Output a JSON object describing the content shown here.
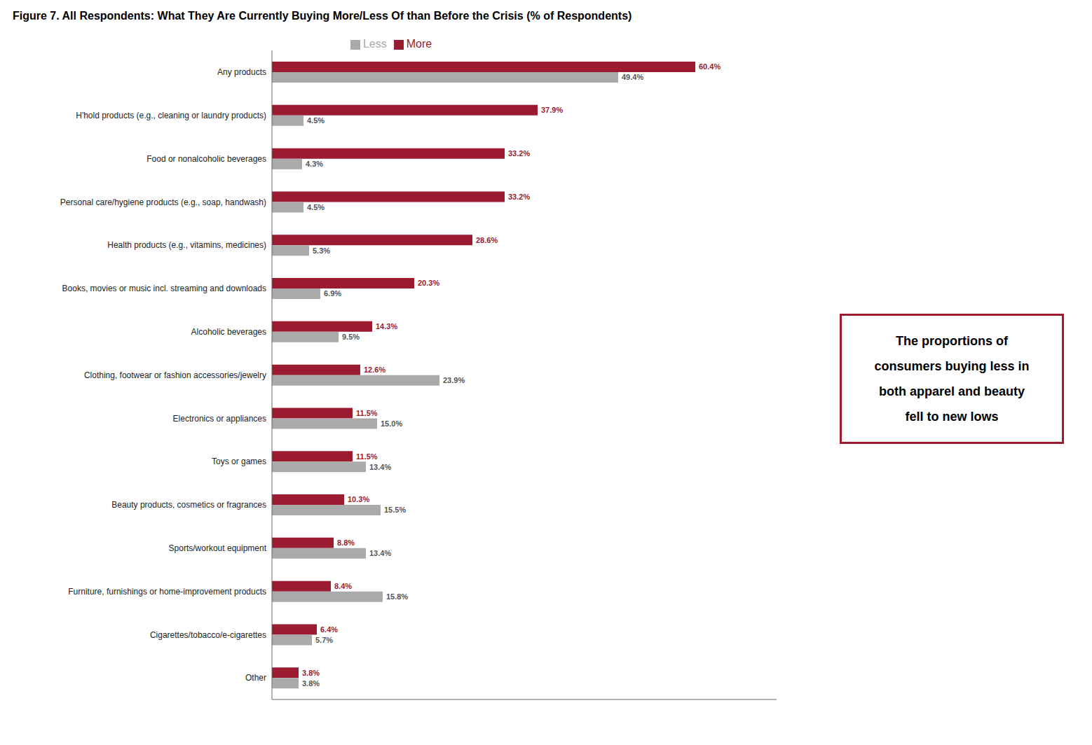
{
  "chart_data": {
    "type": "bar",
    "orientation": "horizontal",
    "title": "Figure 7. All Respondents: What They Are Currently Buying More/Less Of than Before the Crisis (% of Respondents)",
    "categories": [
      "Other",
      "Cigarettes/tobacco/e-cigarettes",
      "Furniture, furnishings or home-improvement products",
      "Sports/workout equipment",
      "Beauty products, cosmetics or fragrances",
      "Toys or games",
      "Electronics or appliances",
      "Clothing, footwear or fashion accessories/jewelry",
      "Alcoholic beverages",
      "Books, movies or music incl. streaming and downloads",
      "Health products (e.g., vitamins, medicines)",
      "Personal care/hygiene products (e.g., soap, handwash)",
      "Food or nonalcoholic beverages",
      "H'hold products (e.g., cleaning or laundry products)",
      "Any products"
    ],
    "series": [
      {
        "name": "More",
        "color": "#9B1B30",
        "values": [
          3.8,
          6.4,
          8.4,
          8.8,
          10.3,
          11.5,
          11.5,
          12.6,
          14.3,
          20.3,
          28.6,
          33.2,
          33.2,
          37.9,
          60.4
        ],
        "value_labels": [
          "3.8%",
          "6.4%",
          "8.4%",
          "8.8%",
          "10.3%",
          "11.5%",
          "11.5%",
          "12.6%",
          "14.3%",
          "20.3%",
          "28.6%",
          "33.2%",
          "33.2%",
          "37.9%",
          "60.4%"
        ]
      },
      {
        "name": "Less",
        "color": "#AAAAAA",
        "values": [
          3.8,
          5.7,
          15.8,
          13.4,
          15.5,
          13.4,
          15.0,
          23.9,
          9.5,
          6.9,
          5.3,
          4.5,
          4.3,
          4.5,
          49.4
        ],
        "value_labels": [
          "3.8%",
          "5.7%",
          "15.8%",
          "13.4%",
          "15.5%",
          "13.4%",
          "15.0%",
          "23.9%",
          "9.5%",
          "6.9%",
          "5.3%",
          "4.5%",
          "4.3%",
          "4.5%",
          "49.4%"
        ]
      }
    ],
    "xlim": [
      0,
      72
    ],
    "tick_labels": "y",
    "data_labels": true,
    "legend": "top",
    "grid": false,
    "annotations": [
      {
        "text": "The proportions of\nconsumers buying less in\nboth apparel and beauty\nfell to new lows",
        "color": "#9B1B30"
      }
    ]
  }
}
